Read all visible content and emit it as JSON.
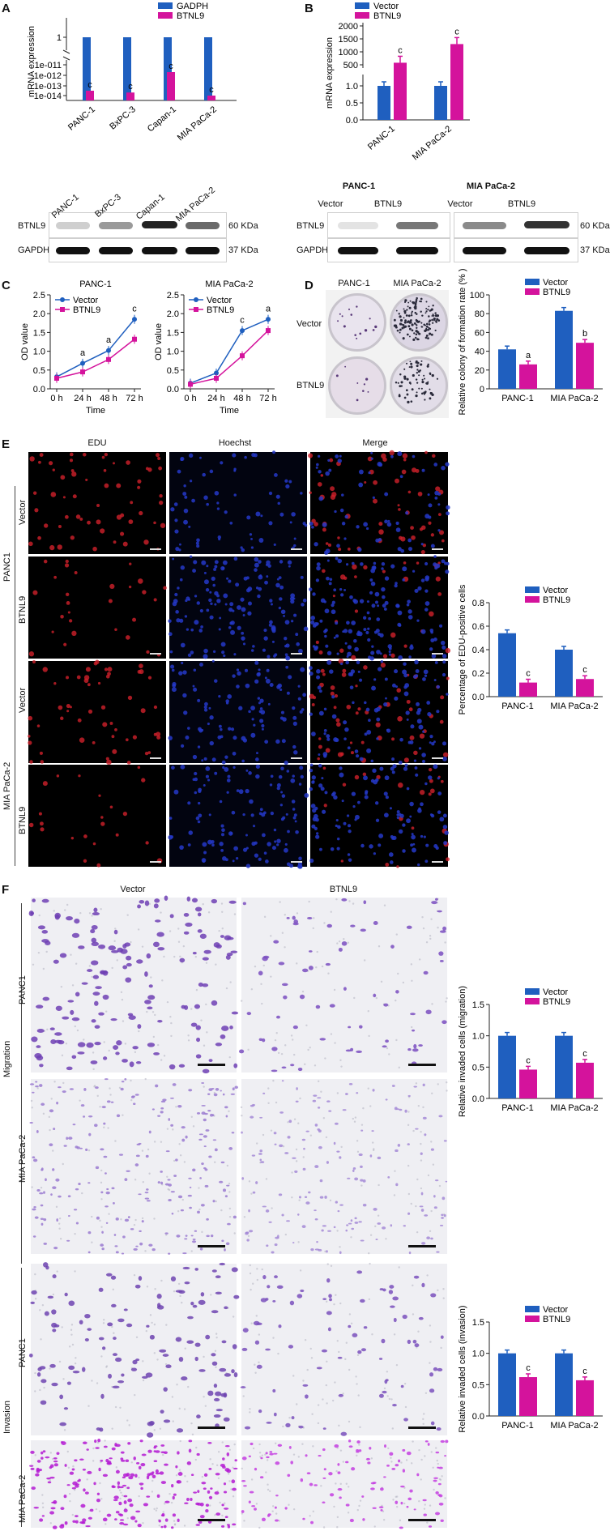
{
  "panels": {
    "A": {
      "letter": "A",
      "chart_data": {
        "type": "bar",
        "ylabel": "mRNA expression",
        "yscale": "broken-log",
        "ytick_labels": [
          "1",
          "1e-011",
          "1e-012",
          "1e-013",
          "1e-014"
        ],
        "categories": [
          "PANC-1",
          "BxPC-3",
          "Capan-1",
          "MIA PaCa-2"
        ],
        "series": [
          {
            "name": "GADPH",
            "color": "#1f5fbf",
            "values": [
              1,
              1,
              1,
              1
            ]
          },
          {
            "name": "BTNL9",
            "color": "#d4139c",
            "values": [
              3e-14,
              2e-14,
              2e-12,
              1e-14
            ]
          }
        ],
        "annotations": [
          "c",
          "c",
          "c",
          "c"
        ],
        "legend": "top-right"
      },
      "blot": {
        "lanes": [
          "PANC-1",
          "BxPC-3",
          "Capan-1",
          "MIA PaCa-2"
        ],
        "rows": [
          {
            "label": "BTNL9",
            "size": "60 KDa"
          },
          {
            "label": "GAPDH",
            "size": "37 KDa"
          }
        ]
      }
    },
    "B": {
      "letter": "B",
      "chart_data": {
        "type": "bar",
        "ylabel": "mRNA expression",
        "ytick_labels": [
          "2000",
          "1500",
          "1000",
          "500",
          "1.0",
          "0.5",
          "0.0"
        ],
        "categories": [
          "PANC-1",
          "MIA PaCa-2"
        ],
        "series": [
          {
            "name": "Vector",
            "color": "#1f5fbf",
            "values": [
              1.0,
              1.0
            ]
          },
          {
            "name": "BTNL9",
            "color": "#d4139c",
            "values": [
              580,
              1300
            ]
          }
        ],
        "annotations": [
          "c",
          "c"
        ],
        "legend": "top-left"
      },
      "blot": {
        "groups": [
          "PANC-1",
          "MIA PaCa-2"
        ],
        "lanes": [
          "Vector",
          "BTNL9",
          "Vector",
          "BTNL9"
        ],
        "rows": [
          {
            "label": "BTNL9",
            "size": "60 KDa"
          },
          {
            "label": "GAPDH",
            "size": "37 KDa"
          }
        ]
      }
    },
    "C": {
      "letter": "C",
      "charts": [
        {
          "type": "line",
          "title": "PANC-1",
          "xlabel": "Time",
          "ylabel": "OD value",
          "x": [
            "0 h",
            "24 h",
            "48 h",
            "72 h"
          ],
          "ylim": [
            0,
            2.5
          ],
          "yticks": [
            "0.0",
            "0.5",
            "1.0",
            "1.5",
            "2.0",
            "2.5"
          ],
          "series": [
            {
              "name": "Vector",
              "color": "#1f5fbf",
              "values": [
                0.32,
                0.68,
                1.02,
                1.85
              ]
            },
            {
              "name": "BTNL9",
              "color": "#d4139c",
              "values": [
                0.28,
                0.45,
                0.78,
                1.32
              ]
            }
          ],
          "annotations": [
            "",
            "a",
            "a",
            "c"
          ],
          "legend": "top-left"
        },
        {
          "type": "line",
          "title": "MIA PaCa-2",
          "xlabel": "Time",
          "ylabel": "OD value",
          "x": [
            "0 h",
            "24 h",
            "48 h",
            "72 h"
          ],
          "ylim": [
            0,
            2.5
          ],
          "yticks": [
            "0.0",
            "0.5",
            "1.0",
            "1.5",
            "2.0",
            "2.5"
          ],
          "series": [
            {
              "name": "Vector",
              "color": "#1f5fbf",
              "values": [
                0.15,
                0.42,
                1.55,
                1.85
              ]
            },
            {
              "name": "BTNL9",
              "color": "#d4139c",
              "values": [
                0.12,
                0.28,
                0.88,
                1.55
              ]
            }
          ],
          "annotations": [
            "",
            "",
            "c",
            "a"
          ],
          "legend": "top-left"
        }
      ]
    },
    "D": {
      "letter": "D",
      "columns": [
        "PANC-1",
        "MIA PaCa-2"
      ],
      "rows": [
        "Vector",
        "BTNL9"
      ],
      "chart_data": {
        "type": "bar",
        "ylabel": "Relative colony of formation rate (% )",
        "ylim": [
          0,
          100
        ],
        "yticks": [
          "0",
          "20",
          "40",
          "60",
          "80",
          "100"
        ],
        "categories": [
          "PANC-1",
          "MIA PaCa-2"
        ],
        "series": [
          {
            "name": "Vector",
            "color": "#1f5fbf",
            "values": [
              42,
              83
            ]
          },
          {
            "name": "BTNL9",
            "color": "#d4139c",
            "values": [
              26,
              49
            ]
          }
        ],
        "annotations": [
          "a",
          "b"
        ],
        "legend": "top-right"
      }
    },
    "E": {
      "letter": "E",
      "columns": [
        "EDU",
        "Hoechst",
        "Merge"
      ],
      "groups": [
        "PANC1",
        "MIA PaCa-2"
      ],
      "rows": [
        "Vector",
        "BTNL9",
        "Vector",
        "BTNL9"
      ],
      "chart_data": {
        "type": "bar",
        "ylabel": "Percentage of EDU-positive cells",
        "ylim": [
          0,
          0.8
        ],
        "yticks": [
          "0.0",
          "0.2",
          "0.4",
          "0.6",
          "0.8"
        ],
        "categories": [
          "PANC-1",
          "MIA PaCa-2"
        ],
        "series": [
          {
            "name": "Vector",
            "color": "#1f5fbf",
            "values": [
              0.54,
              0.4
            ]
          },
          {
            "name": "BTNL9",
            "color": "#d4139c",
            "values": [
              0.12,
              0.15
            ]
          }
        ],
        "annotations": [
          "c",
          "c"
        ],
        "legend": "top-right"
      }
    },
    "F": {
      "letter": "F",
      "columns": [
        "Vector",
        "BTNL9"
      ],
      "sections": [
        "Migration",
        "Invasion"
      ],
      "rows": [
        "PANC1",
        "MIA PaCa-2",
        "PANC1",
        "MIA PaCa-2"
      ],
      "charts": [
        {
          "type": "bar",
          "ylabel": "Relative invaded cells (migration)",
          "ylim": [
            0,
            1.5
          ],
          "yticks": [
            "0.0",
            "0.5",
            "1.0",
            "1.5"
          ],
          "categories": [
            "PANC-1",
            "MIA PaCa-2"
          ],
          "series": [
            {
              "name": "Vector",
              "color": "#1f5fbf",
              "values": [
                1.0,
                1.0
              ]
            },
            {
              "name": "BTNL9",
              "color": "#d4139c",
              "values": [
                0.46,
                0.57
              ]
            }
          ],
          "annotations": [
            "c",
            "c"
          ],
          "legend": "top-right"
        },
        {
          "type": "bar",
          "ylabel": "Relative invaded cells (invasion)",
          "ylim": [
            0,
            1.5
          ],
          "yticks": [
            "0.0",
            "0.5",
            "1.0",
            "1.5"
          ],
          "categories": [
            "PANC-1",
            "MIA PaCa-2"
          ],
          "series": [
            {
              "name": "Vector",
              "color": "#1f5fbf",
              "values": [
                1.0,
                1.0
              ]
            },
            {
              "name": "BTNL9",
              "color": "#d4139c",
              "values": [
                0.62,
                0.57
              ]
            }
          ],
          "annotations": [
            "c",
            "c"
          ],
          "legend": "top-right"
        }
      ]
    }
  }
}
